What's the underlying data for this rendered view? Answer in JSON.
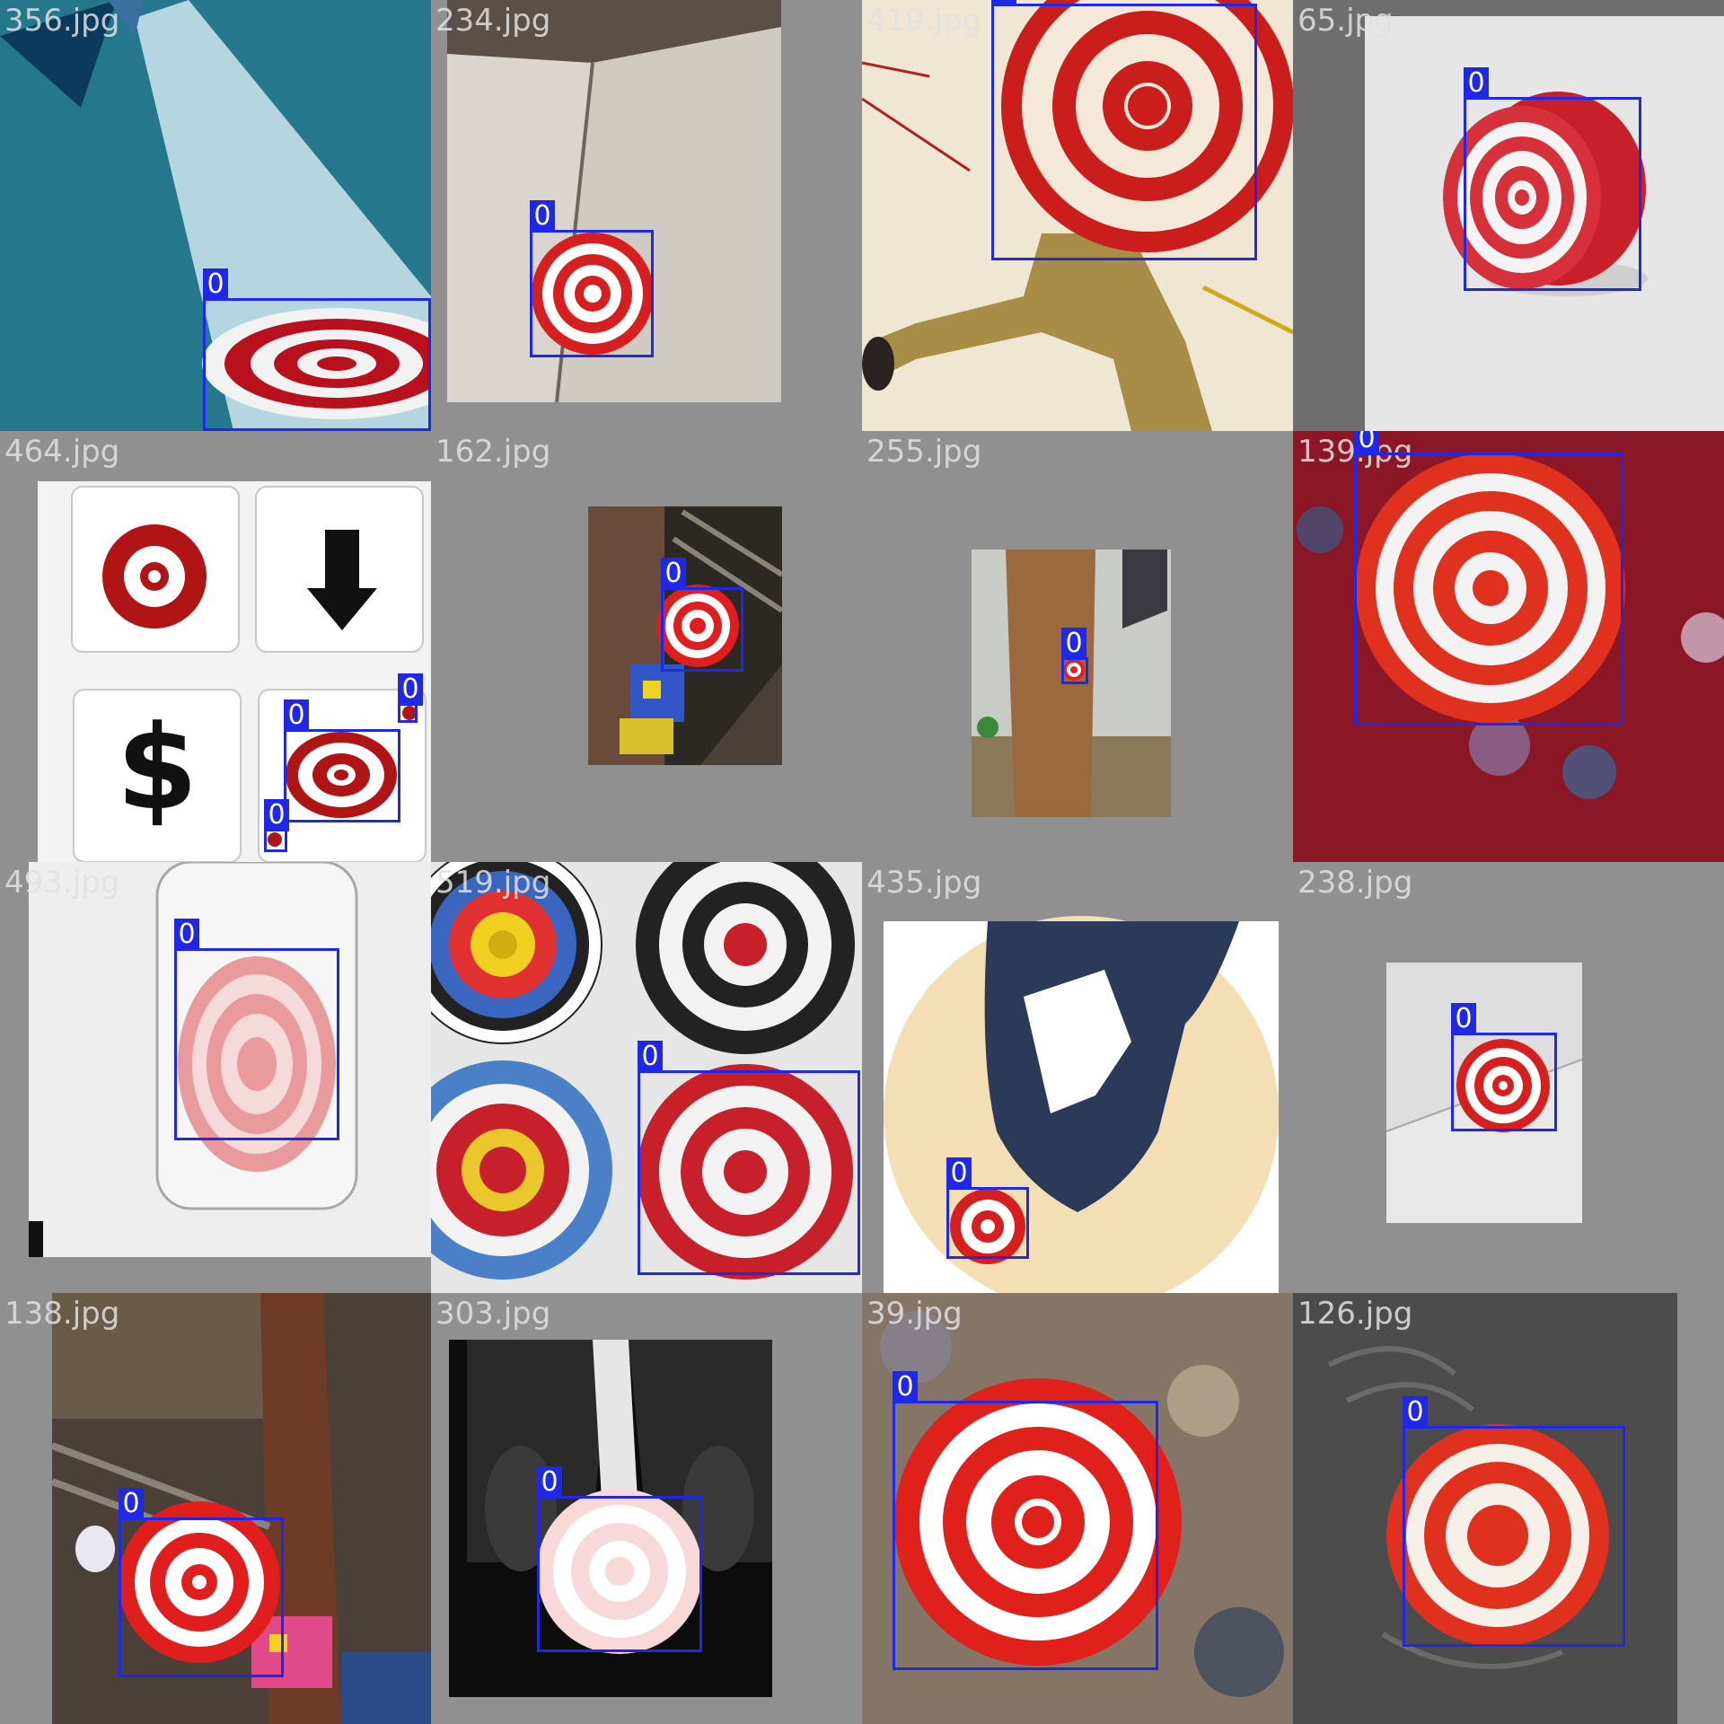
{
  "box_color": "#1f28e8",
  "tiles": [
    {
      "filename": "356.jpg",
      "boxes": [
        {
          "label": "0"
        }
      ]
    },
    {
      "filename": "234.jpg",
      "boxes": [
        {
          "label": "0"
        }
      ]
    },
    {
      "filename": "419.jpg",
      "boxes": [
        {
          "label": "0"
        }
      ]
    },
    {
      "filename": "65.jpg",
      "boxes": [
        {
          "label": "0"
        }
      ]
    },
    {
      "filename": "464.jpg",
      "boxes": [
        {
          "label": "0"
        },
        {
          "label": "0"
        },
        {
          "label": "0"
        }
      ]
    },
    {
      "filename": "162.jpg",
      "boxes": [
        {
          "label": "0"
        }
      ]
    },
    {
      "filename": "255.jpg",
      "boxes": [
        {
          "label": "0"
        }
      ]
    },
    {
      "filename": "139.jpg",
      "boxes": [
        {
          "label": "0"
        }
      ]
    },
    {
      "filename": "493.jpg",
      "boxes": [
        {
          "label": "0"
        }
      ]
    },
    {
      "filename": "519.jpg",
      "boxes": [
        {
          "label": "0"
        }
      ]
    },
    {
      "filename": "435.jpg",
      "boxes": [
        {
          "label": "0"
        }
      ]
    },
    {
      "filename": "238.jpg",
      "boxes": [
        {
          "label": "0"
        }
      ]
    },
    {
      "filename": "138.jpg",
      "boxes": [
        {
          "label": "0"
        }
      ]
    },
    {
      "filename": "303.jpg",
      "boxes": [
        {
          "label": "0"
        }
      ]
    },
    {
      "filename": "39.jpg",
      "boxes": [
        {
          "label": "0"
        }
      ]
    },
    {
      "filename": "126.jpg",
      "boxes": [
        {
          "label": "0"
        }
      ]
    }
  ]
}
